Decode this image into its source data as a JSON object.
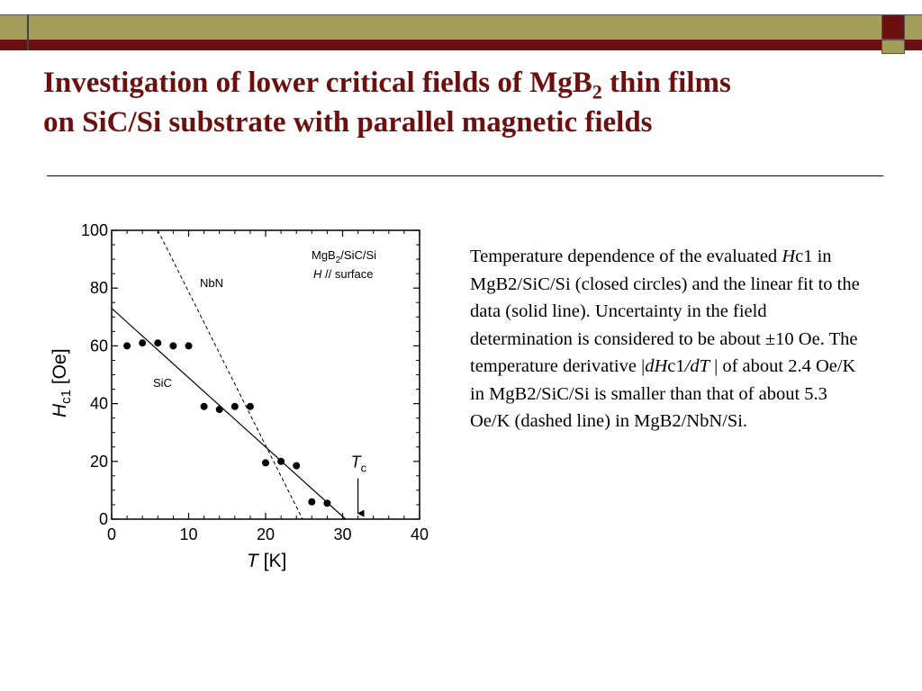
{
  "slide": {
    "title_line1_a": "Investigation of lower critical fields of MgB",
    "title_line1_sub": "2",
    "title_line1_b": " thin films",
    "title_line2": "on SiC/Si substrate with parallel magnetic fields",
    "colors": {
      "title": "#6b0f0f",
      "band_olive": "#a39f5a",
      "band_maroon": "#6b0f0f"
    }
  },
  "caption": {
    "p1": "Temperature dependence of the evaluated ",
    "p2": "H",
    "p3": "c1 in MgB2/SiC/Si (closed circles) and the linear fit to the data (solid line). Uncertainty in the field determination is considered to be about ±10 Oe. The temperature derivative |",
    "p4": "dH",
    "p5": "c1",
    "p6": "/dT",
    "p7": " | of about 2.4 Oe/K in MgB2/SiC/Si is smaller than that of about 5.3 Oe/K (dashed line) in MgB2/NbN/Si."
  },
  "chart_data": {
    "type": "scatter",
    "xlabel_italic": "T",
    "xlabel_rest": " [K]",
    "ylabel_italic": "H",
    "ylabel_sub": "c1",
    "ylabel_rest": " [Oe]",
    "xlim": [
      0,
      40
    ],
    "ylim": [
      0,
      100
    ],
    "xticks": [
      0,
      10,
      20,
      30,
      40
    ],
    "yticks": [
      0,
      20,
      40,
      60,
      80,
      100
    ],
    "tick_labels_x": [
      "0",
      "10",
      "20",
      "30",
      "40"
    ],
    "tick_labels_y": [
      "0",
      "20",
      "40",
      "60",
      "80",
      "100"
    ],
    "points": [
      {
        "x": 2,
        "y": 60
      },
      {
        "x": 4,
        "y": 61
      },
      {
        "x": 6,
        "y": 61
      },
      {
        "x": 8,
        "y": 60
      },
      {
        "x": 10,
        "y": 60
      },
      {
        "x": 12,
        "y": 39
      },
      {
        "x": 14,
        "y": 38
      },
      {
        "x": 16,
        "y": 39
      },
      {
        "x": 18,
        "y": 39
      },
      {
        "x": 20,
        "y": 19.5
      },
      {
        "x": 22,
        "y": 20
      },
      {
        "x": 24,
        "y": 18.5
      },
      {
        "x": 26,
        "y": 6
      },
      {
        "x": 28,
        "y": 5.5
      }
    ],
    "fit_line": {
      "x0": 0,
      "y0": 73,
      "x1": 30.4,
      "y1": 0
    },
    "nbn_line": {
      "x0": 6,
      "y0": 100,
      "x1": 24.8,
      "y1": 0
    },
    "annotation_sample_a": "MgB",
    "annotation_sample_sub": "2",
    "annotation_sample_b": "/SiC/Si",
    "annotation_field_italic": "H",
    "annotation_field_rest": " // surface",
    "label_nbn": "NbN",
    "label_sic": "SiC",
    "tc_label_italic": "T",
    "tc_label_sub": "c",
    "tc_x": 32,
    "tc_arrow_from": 16,
    "tc_arrow_to": 2
  }
}
